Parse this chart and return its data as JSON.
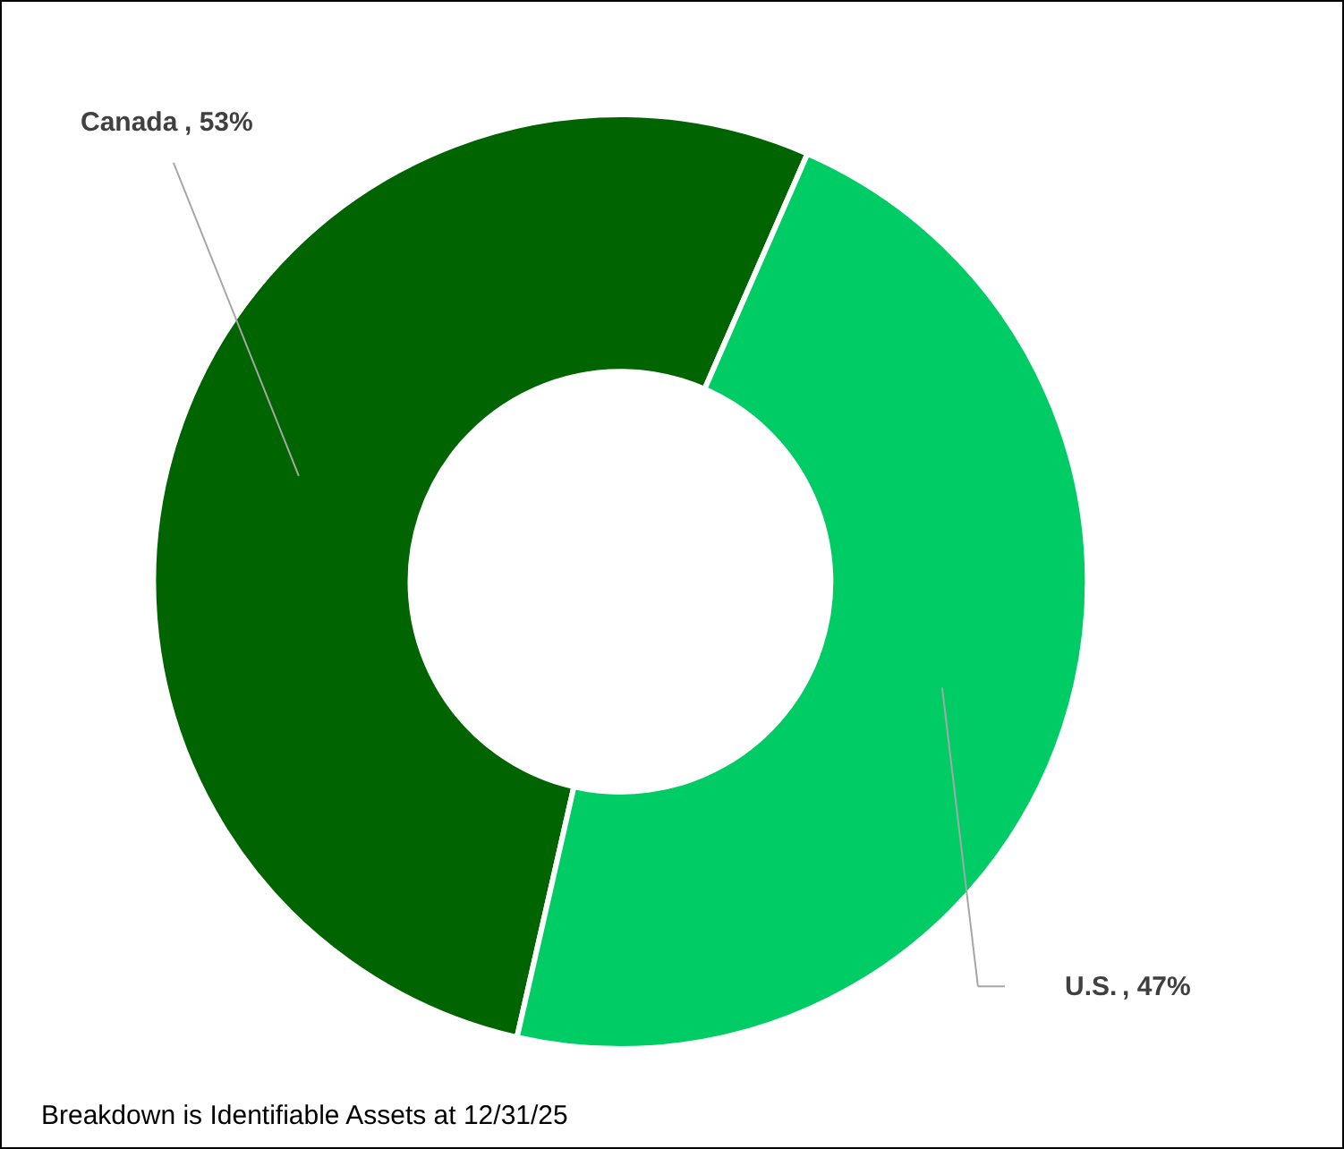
{
  "chart_data": {
    "type": "donut",
    "categories": [
      "Canada",
      "U.S."
    ],
    "values": [
      53,
      47
    ],
    "colors": [
      "#006400",
      "#00cc66"
    ],
    "value_labels": [
      ", 53%",
      ", 47%"
    ],
    "legend": false,
    "annotations": [
      "Breakdown is Identifiable Assets at 12/31/25"
    ]
  }
}
